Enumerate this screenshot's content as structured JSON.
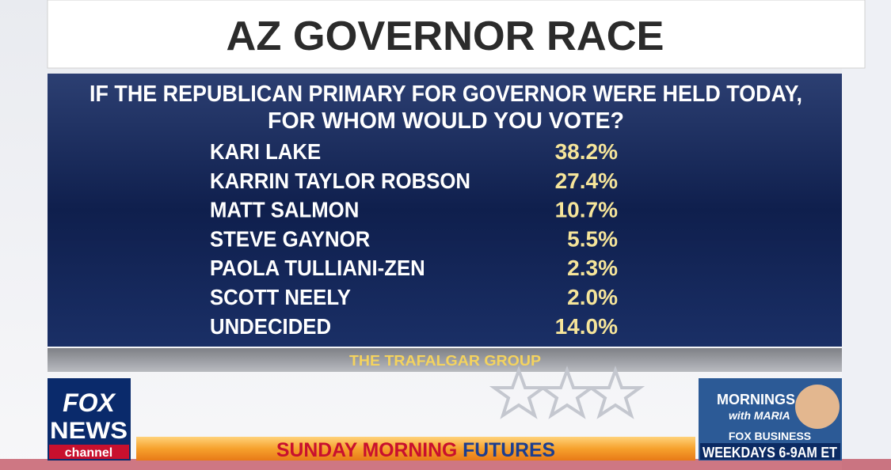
{
  "header": {
    "title": "AZ GOVERNOR RACE"
  },
  "question": {
    "lines": [
      "IF THE REPUBLICAN PRIMARY FOR GOVERNOR WERE HELD TODAY,",
      "FOR WHOM WOULD YOU VOTE?"
    ]
  },
  "table": {
    "rows": [
      [
        "KARI LAKE",
        "38.2%"
      ],
      [
        "KARRIN TAYLOR ROBSON",
        "27.4%"
      ],
      [
        "MATT SALMON",
        "10.7%"
      ],
      [
        "STEVE GAYNOR",
        "5.5%"
      ],
      [
        "PAOLA TULLIANI-ZEN",
        "2.3%"
      ],
      [
        "SCOTT NEELY",
        "2.0%"
      ],
      [
        "UNDECIDED",
        "14.0%"
      ]
    ]
  },
  "source": "THE TRAFALGAR GROUP",
  "logo": {
    "line1": "FOX",
    "line2": "NEWS",
    "line3": "channel"
  },
  "show_bar": {
    "part1": "SUNDAY MORNING",
    "part2": "FUTURES"
  },
  "promo": {
    "line1": "MORNINGS",
    "line2": "with MARIA",
    "network": "FOX BUSINESS",
    "schedule": "WEEKDAYS 6-9AM ET"
  }
}
